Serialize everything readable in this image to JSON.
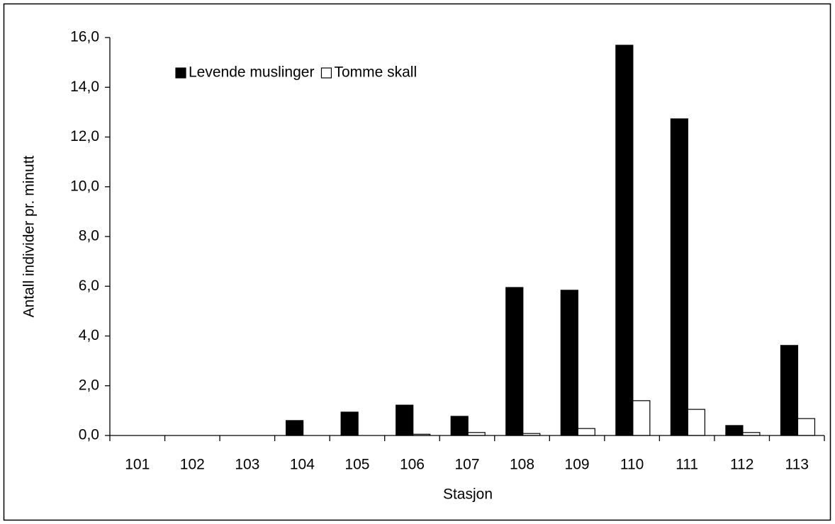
{
  "chart_data": {
    "type": "bar",
    "x_label": "Stasjon",
    "y_label": "Antall individer pr. minutt",
    "categories": [
      "101",
      "102",
      "103",
      "104",
      "105",
      "106",
      "107",
      "108",
      "109",
      "110",
      "111",
      "112",
      "113"
    ],
    "series": [
      {
        "name": "Levende muslinger",
        "color": "#000000",
        "values": [
          0,
          0,
          0,
          0.6,
          0.94,
          1.22,
          0.77,
          5.95,
          5.84,
          15.69,
          12.73,
          0.4,
          3.62
        ]
      },
      {
        "name": "Tomme skall",
        "color": "#ffffff",
        "values": [
          0,
          0,
          0,
          0,
          0,
          0.05,
          0.12,
          0.08,
          0.28,
          1.4,
          1.05,
          0.12,
          0.68
        ]
      }
    ],
    "ylim": [
      0,
      16
    ],
    "yticks": [
      {
        "value": 0,
        "label": "0,0"
      },
      {
        "value": 2,
        "label": "2,0"
      },
      {
        "value": 4,
        "label": "4,0"
      },
      {
        "value": 6,
        "label": "6,0"
      },
      {
        "value": 8,
        "label": "8,0"
      },
      {
        "value": 10,
        "label": "10,0"
      },
      {
        "value": 12,
        "label": "12,0"
      },
      {
        "value": 14,
        "label": "14,0"
      },
      {
        "value": 16,
        "label": "16,0"
      }
    ],
    "grid": false,
    "legend": "top-left"
  }
}
